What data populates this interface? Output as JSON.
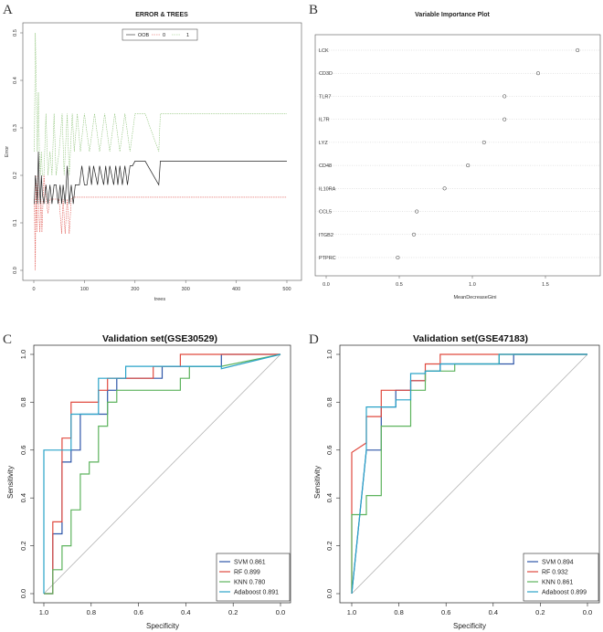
{
  "panels": {
    "a": "A",
    "b": "B",
    "c": "C",
    "d": "D"
  },
  "chart_data": [
    {
      "id": "A",
      "type": "line",
      "title": "ERROR & TREES",
      "xlabel": "trees",
      "ylabel": "Error",
      "xlim": [
        0,
        500
      ],
      "ylim": [
        0,
        0.5
      ],
      "xticks": [
        "0",
        "100",
        "200",
        "300",
        "400",
        "500"
      ],
      "yticks": [
        "0.0",
        "0.1",
        "0.2",
        "0.3",
        "0.4",
        "0.5"
      ],
      "legend": [
        "OOB",
        "0",
        "1"
      ],
      "colors": {
        "OOB": "#222222",
        "0": "#e0554f",
        "1": "#8fc47a"
      },
      "series": [
        {
          "name": "OOB",
          "x": [
            1,
            3,
            5,
            7,
            9,
            11,
            13,
            15,
            17,
            20,
            24,
            28,
            32,
            36,
            40,
            44,
            48,
            52,
            55,
            58,
            62,
            66,
            70,
            74,
            78,
            82,
            86,
            90,
            95,
            100,
            105,
            110,
            114,
            118,
            122,
            126,
            130,
            134,
            138,
            142,
            146,
            150,
            154,
            158,
            162,
            166,
            170,
            175,
            180,
            185,
            190,
            195,
            200,
            220,
            247,
            250,
            300,
            400,
            500
          ],
          "y": [
            0.14,
            0.2,
            0.18,
            0.14,
            0.25,
            0.18,
            0.14,
            0.2,
            0.16,
            0.14,
            0.18,
            0.14,
            0.18,
            0.14,
            0.18,
            0.18,
            0.14,
            0.18,
            0.14,
            0.18,
            0.14,
            0.22,
            0.14,
            0.18,
            0.14,
            0.18,
            0.18,
            0.18,
            0.22,
            0.18,
            0.18,
            0.22,
            0.18,
            0.22,
            0.2,
            0.18,
            0.22,
            0.2,
            0.18,
            0.22,
            0.18,
            0.22,
            0.2,
            0.18,
            0.22,
            0.18,
            0.22,
            0.18,
            0.22,
            0.18,
            0.22,
            0.22,
            0.23,
            0.23,
            0.18,
            0.23,
            0.23,
            0.23,
            0.23
          ]
        },
        {
          "name": "0",
          "x": [
            1,
            3,
            4,
            6,
            8,
            10,
            12,
            14,
            16,
            20,
            24,
            28,
            32,
            36,
            40,
            44,
            50,
            55,
            58,
            62,
            66,
            70,
            74,
            78,
            85,
            100,
            200,
            300,
            400,
            500
          ],
          "y": [
            0.15,
            0.0,
            0.2,
            0.08,
            0.2,
            0.12,
            0.08,
            0.15,
            0.08,
            0.2,
            0.15,
            0.12,
            0.15,
            0.15,
            0.15,
            0.15,
            0.15,
            0.077,
            0.15,
            0.077,
            0.15,
            0.077,
            0.15,
            0.154,
            0.154,
            0.154,
            0.154,
            0.154,
            0.154,
            0.154
          ]
        },
        {
          "name": "1",
          "x": [
            1,
            3,
            5,
            7,
            9,
            11,
            13,
            15,
            17,
            20,
            24,
            28,
            32,
            36,
            40,
            44,
            50,
            56,
            60,
            66,
            70,
            76,
            80,
            86,
            92,
            100,
            110,
            120,
            130,
            140,
            150,
            160,
            170,
            180,
            190,
            200,
            220,
            247,
            250,
            300,
            400,
            500
          ],
          "y": [
            0.25,
            0.5,
            0.375,
            0.25,
            0.375,
            0.25,
            0.2,
            0.25,
            0.2,
            0.2,
            0.33,
            0.2,
            0.25,
            0.2,
            0.33,
            0.2,
            0.25,
            0.33,
            0.2,
            0.33,
            0.2,
            0.33,
            0.25,
            0.33,
            0.25,
            0.33,
            0.25,
            0.33,
            0.25,
            0.33,
            0.25,
            0.33,
            0.25,
            0.33,
            0.25,
            0.33,
            0.33,
            0.25,
            0.33,
            0.33,
            0.33,
            0.33
          ]
        }
      ]
    },
    {
      "id": "B",
      "type": "scatter",
      "title": "Variable Importance Plot",
      "xlabel": "MeanDecreaseGini",
      "xlim": [
        0,
        1.8
      ],
      "xticks": [
        "0.0",
        "0.5",
        "1.0",
        "1.5"
      ],
      "categories": [
        "LCK",
        "CD3D",
        "TLR7",
        "IL7R",
        "LYZ",
        "CD48",
        "IL10RA",
        "CCL5",
        "ITGB2",
        "PTPRC"
      ],
      "values": [
        1.72,
        1.45,
        1.22,
        1.22,
        1.08,
        0.97,
        0.81,
        0.62,
        0.6,
        0.49
      ]
    },
    {
      "id": "C",
      "type": "line",
      "title": "Validation set(GSE30529)",
      "xlabel": "Specificity",
      "ylabel": "Sensitivity",
      "xlim": [
        1.0,
        0.0
      ],
      "ylim": [
        0,
        1.0
      ],
      "xticks": [
        "1.0",
        "0.8",
        "0.6",
        "0.4",
        "0.2",
        "0.0"
      ],
      "yticks": [
        "0.0",
        "0.2",
        "0.4",
        "0.6",
        "0.8",
        "1.0"
      ],
      "series": [
        {
          "name": "SVM",
          "auc": "0.861",
          "color": "#2e56a8",
          "x": [
            1,
            0.962,
            0.962,
            0.923,
            0.923,
            0.885,
            0.885,
            0.846,
            0.846,
            0.731,
            0.731,
            0.692,
            0.692,
            0.5,
            0.5,
            0.25,
            0.25,
            0
          ],
          "y": [
            0,
            0,
            0.25,
            0.25,
            0.55,
            0.55,
            0.6,
            0.6,
            0.75,
            0.75,
            0.85,
            0.85,
            0.9,
            0.9,
            0.95,
            0.95,
            1,
            1
          ]
        },
        {
          "name": "RF",
          "auc": "0.899",
          "color": "#e04a3f",
          "x": [
            1,
            0.962,
            0.962,
            0.923,
            0.923,
            0.885,
            0.885,
            0.769,
            0.769,
            0.731,
            0.731,
            0.538,
            0.538,
            0.462,
            0.462,
            0.423,
            0.423,
            0
          ],
          "y": [
            0,
            0,
            0.3,
            0.3,
            0.65,
            0.65,
            0.8,
            0.8,
            0.85,
            0.85,
            0.9,
            0.9,
            0.95,
            0.95,
            0.95,
            0.95,
            1,
            1
          ]
        },
        {
          "name": "KNN",
          "auc": "0.780",
          "color": "#5db35d",
          "x": [
            1,
            0.962,
            0.962,
            0.923,
            0.923,
            0.885,
            0.885,
            0.846,
            0.846,
            0.808,
            0.808,
            0.769,
            0.769,
            0.731,
            0.731,
            0.692,
            0.692,
            0.538,
            0.538,
            0.423,
            0.423,
            0.385,
            0.385,
            0.25,
            0.25,
            0
          ],
          "y": [
            0,
            0,
            0.1,
            0.1,
            0.2,
            0.2,
            0.35,
            0.35,
            0.5,
            0.5,
            0.55,
            0.55,
            0.7,
            0.7,
            0.8,
            0.8,
            0.85,
            0.85,
            0.85,
            0.85,
            0.9,
            0.9,
            0.95,
            0.95,
            0.95,
            1
          ]
        },
        {
          "name": "Adaboost",
          "auc": "0.891",
          "color": "#2aa3c8",
          "x": [
            1,
            1,
            0.923,
            0.923,
            0.885,
            0.885,
            0.846,
            0.846,
            0.769,
            0.769,
            0.731,
            0.731,
            0.654,
            0.654,
            0.462,
            0.462,
            0.25,
            0.25,
            0
          ],
          "y": [
            0,
            0.6,
            0.6,
            0.6,
            0.6,
            0.75,
            0.75,
            0.75,
            0.75,
            0.9,
            0.9,
            0.9,
            0.9,
            0.95,
            0.95,
            0.95,
            0.95,
            0.94,
            1
          ]
        }
      ]
    },
    {
      "id": "D",
      "type": "line",
      "title": "Validation set(GSE47183)",
      "xlabel": "Specificity",
      "ylabel": "Sensitivity",
      "xlim": [
        1.0,
        0.0
      ],
      "ylim": [
        0,
        1.0
      ],
      "xticks": [
        "1.0",
        "0.8",
        "0.6",
        "0.4",
        "0.2",
        "0.0"
      ],
      "yticks": [
        "0.0",
        "0.2",
        "0.4",
        "0.6",
        "0.8",
        "1.0"
      ],
      "series": [
        {
          "name": "SVM",
          "auc": "0.894",
          "color": "#2e56a8",
          "x": [
            1,
            0.938,
            0.938,
            0.875,
            0.875,
            0.813,
            0.813,
            0.75,
            0.75,
            0.688,
            0.688,
            0.625,
            0.625,
            0.563,
            0.563,
            0.375,
            0.375,
            0.313,
            0.313,
            0
          ],
          "y": [
            0,
            0.6,
            0.6,
            0.6,
            0.78,
            0.78,
            0.85,
            0.85,
            0.89,
            0.89,
            0.93,
            0.93,
            0.96,
            0.96,
            0.96,
            0.96,
            0.96,
            0.96,
            1,
            1
          ]
        },
        {
          "name": "RF",
          "auc": "0.932",
          "color": "#e04a3f",
          "x": [
            1,
            1,
            0.938,
            0.938,
            0.875,
            0.875,
            0.75,
            0.75,
            0.688,
            0.688,
            0.625,
            0.625,
            0
          ],
          "y": [
            0,
            0.59,
            0.63,
            0.74,
            0.74,
            0.85,
            0.85,
            0.89,
            0.89,
            0.96,
            0.96,
            1,
            1
          ]
        },
        {
          "name": "KNN",
          "auc": "0.861",
          "color": "#5db35d",
          "x": [
            1,
            1,
            0.938,
            0.938,
            0.875,
            0.875,
            0.75,
            0.75,
            0.688,
            0.688,
            0.625,
            0.625,
            0.563,
            0.563,
            0.375,
            0.375,
            0
          ],
          "y": [
            0,
            0.33,
            0.33,
            0.41,
            0.41,
            0.7,
            0.7,
            0.85,
            0.85,
            0.93,
            0.93,
            0.93,
            0.93,
            0.96,
            0.96,
            1,
            1
          ]
        },
        {
          "name": "Adaboost",
          "auc": "0.899",
          "color": "#2aa3c8",
          "x": [
            1,
            0.938,
            0.938,
            0.813,
            0.813,
            0.75,
            0.75,
            0.688,
            0.688,
            0.625,
            0.625,
            0.5,
            0.5,
            0.375,
            0.375,
            0
          ],
          "y": [
            0,
            0.6,
            0.78,
            0.78,
            0.81,
            0.81,
            0.92,
            0.92,
            0.93,
            0.93,
            0.96,
            0.96,
            0.96,
            0.96,
            1,
            1
          ]
        }
      ]
    }
  ]
}
